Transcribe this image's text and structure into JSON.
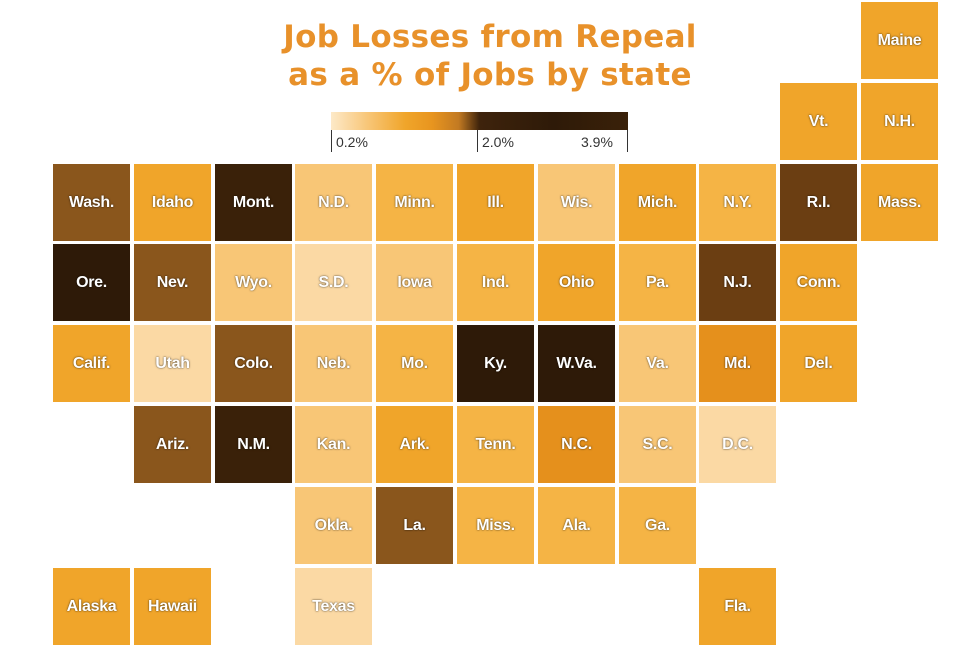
{
  "chart_data": {
    "type": "tile-map",
    "title": [
      "Job Losses from Repeal",
      "as a % of Jobs by state"
    ],
    "legend": {
      "labels": [
        "0.2%",
        "2.0%",
        "3.9%"
      ],
      "min": 0.2,
      "mid": 2.0,
      "max": 3.9
    },
    "colors": {
      "title": "#e8912a",
      "very_light": "#fbd9a4",
      "light": "#f8c676",
      "medium": "#f5b445",
      "orange": "#f0a52a",
      "dark_orange": "#e5901c",
      "brown": "#8a561c",
      "dark_brown": "#6b3e12",
      "darkest": "#2e1a08"
    },
    "tiles": [
      {
        "label": "Maine",
        "row": 0,
        "col": 10,
        "color": "#f0a52a"
      },
      {
        "label": "Vt.",
        "row": 1,
        "col": 9,
        "color": "#f0a52a"
      },
      {
        "label": "N.H.",
        "row": 1,
        "col": 10,
        "color": "#f0a52a"
      },
      {
        "label": "Wash.",
        "row": 2,
        "col": 0,
        "color": "#8a561c"
      },
      {
        "label": "Idaho",
        "row": 2,
        "col": 1,
        "color": "#f0a52a"
      },
      {
        "label": "Mont.",
        "row": 2,
        "col": 2,
        "color": "#3a2109"
      },
      {
        "label": "N.D.",
        "row": 2,
        "col": 3,
        "color": "#f8c676"
      },
      {
        "label": "Minn.",
        "row": 2,
        "col": 4,
        "color": "#f5b445"
      },
      {
        "label": "Ill.",
        "row": 2,
        "col": 5,
        "color": "#f0a52a"
      },
      {
        "label": "Wis.",
        "row": 2,
        "col": 6,
        "color": "#f8c676"
      },
      {
        "label": "Mich.",
        "row": 2,
        "col": 7,
        "color": "#f0a52a"
      },
      {
        "label": "N.Y.",
        "row": 2,
        "col": 8,
        "color": "#f5b445"
      },
      {
        "label": "R.I.",
        "row": 2,
        "col": 9,
        "color": "#6b3e12"
      },
      {
        "label": "Mass.",
        "row": 2,
        "col": 10,
        "color": "#f0a52a"
      },
      {
        "label": "Ore.",
        "row": 3,
        "col": 0,
        "color": "#2e1a08"
      },
      {
        "label": "Nev.",
        "row": 3,
        "col": 1,
        "color": "#8a561c"
      },
      {
        "label": "Wyo.",
        "row": 3,
        "col": 2,
        "color": "#f8c676"
      },
      {
        "label": "S.D.",
        "row": 3,
        "col": 3,
        "color": "#fbd9a4"
      },
      {
        "label": "Iowa",
        "row": 3,
        "col": 4,
        "color": "#f8c676"
      },
      {
        "label": "Ind.",
        "row": 3,
        "col": 5,
        "color": "#f5b445"
      },
      {
        "label": "Ohio",
        "row": 3,
        "col": 6,
        "color": "#f0a52a"
      },
      {
        "label": "Pa.",
        "row": 3,
        "col": 7,
        "color": "#f5b445"
      },
      {
        "label": "N.J.",
        "row": 3,
        "col": 8,
        "color": "#6b3e12"
      },
      {
        "label": "Conn.",
        "row": 3,
        "col": 9,
        "color": "#f0a52a"
      },
      {
        "label": "Calif.",
        "row": 4,
        "col": 0,
        "color": "#f0a52a"
      },
      {
        "label": "Utah",
        "row": 4,
        "col": 1,
        "color": "#fbd9a4"
      },
      {
        "label": "Colo.",
        "row": 4,
        "col": 2,
        "color": "#8a561c"
      },
      {
        "label": "Neb.",
        "row": 4,
        "col": 3,
        "color": "#f8c676"
      },
      {
        "label": "Mo.",
        "row": 4,
        "col": 4,
        "color": "#f5b445"
      },
      {
        "label": "Ky.",
        "row": 4,
        "col": 5,
        "color": "#2e1a08"
      },
      {
        "label": "W.Va.",
        "row": 4,
        "col": 6,
        "color": "#2e1a08"
      },
      {
        "label": "Va.",
        "row": 4,
        "col": 7,
        "color": "#f8c676"
      },
      {
        "label": "Md.",
        "row": 4,
        "col": 8,
        "color": "#e5901c"
      },
      {
        "label": "Del.",
        "row": 4,
        "col": 9,
        "color": "#f0a52a"
      },
      {
        "label": "Ariz.",
        "row": 5,
        "col": 1,
        "color": "#8a561c"
      },
      {
        "label": "N.M.",
        "row": 5,
        "col": 2,
        "color": "#3a2109"
      },
      {
        "label": "Kan.",
        "row": 5,
        "col": 3,
        "color": "#f8c676"
      },
      {
        "label": "Ark.",
        "row": 5,
        "col": 4,
        "color": "#f0a52a"
      },
      {
        "label": "Tenn.",
        "row": 5,
        "col": 5,
        "color": "#f5b445"
      },
      {
        "label": "N.C.",
        "row": 5,
        "col": 6,
        "color": "#e5901c"
      },
      {
        "label": "S.C.",
        "row": 5,
        "col": 7,
        "color": "#f8c676"
      },
      {
        "label": "D.C.",
        "row": 5,
        "col": 8,
        "color": "#fbd9a4"
      },
      {
        "label": "Okla.",
        "row": 6,
        "col": 3,
        "color": "#f8c676"
      },
      {
        "label": "La.",
        "row": 6,
        "col": 4,
        "color": "#8a561c"
      },
      {
        "label": "Miss.",
        "row": 6,
        "col": 5,
        "color": "#f5b445"
      },
      {
        "label": "Ala.",
        "row": 6,
        "col": 6,
        "color": "#f5b445"
      },
      {
        "label": "Ga.",
        "row": 6,
        "col": 7,
        "color": "#f5b445"
      },
      {
        "label": "Alaska",
        "row": 7,
        "col": 0,
        "color": "#f0a52a"
      },
      {
        "label": "Hawaii",
        "row": 7,
        "col": 1,
        "color": "#f0a52a"
      },
      {
        "label": "Texas",
        "row": 7,
        "col": 3,
        "color": "#fbd9a4"
      },
      {
        "label": "Fla.",
        "row": 7,
        "col": 8,
        "color": "#f0a52a"
      }
    ]
  }
}
